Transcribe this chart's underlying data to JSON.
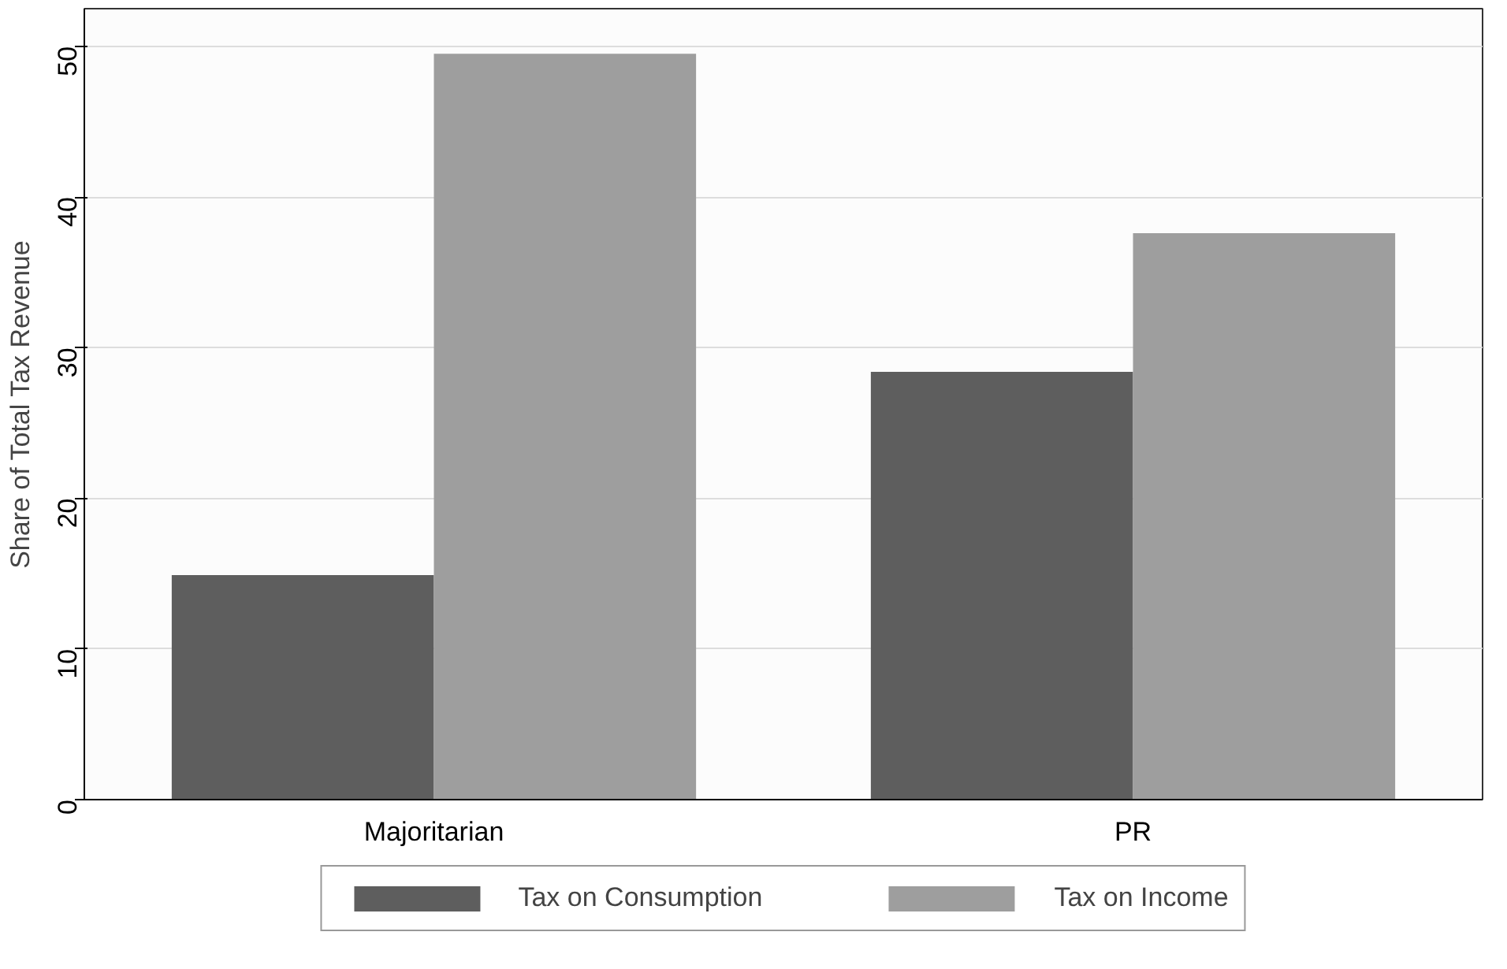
{
  "chart_data": {
    "type": "bar",
    "ylabel": "Share of Total Tax Revenue",
    "categories": [
      "Majoritarian",
      "PR"
    ],
    "series": [
      {
        "name": "Tax on Consumption",
        "color": "#5e5e5e",
        "values": [
          14.9,
          28.4
        ]
      },
      {
        "name": "Tax on Income",
        "color": "#9e9e9e",
        "values": [
          49.5,
          37.6
        ]
      }
    ],
    "ylim": [
      0,
      52.5
    ],
    "yticks": [
      0,
      10,
      20,
      30,
      40,
      50
    ],
    "grid": "y",
    "legend": "bottom"
  }
}
